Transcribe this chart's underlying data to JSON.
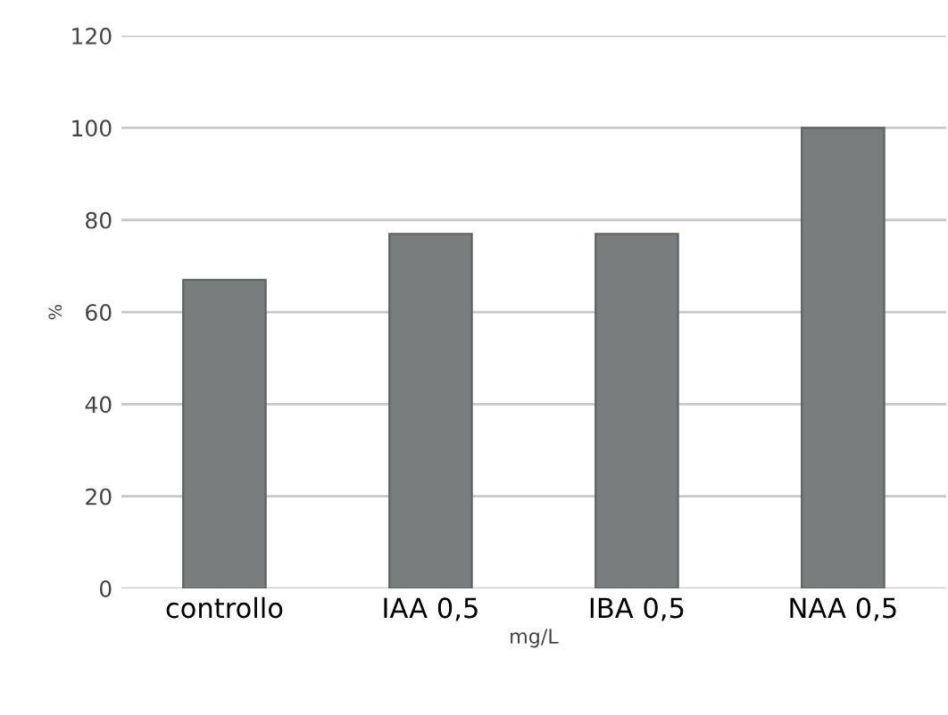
{
  "chart_data": {
    "type": "bar",
    "xlabel": "mg/L",
    "ylabel": "%",
    "categories": [
      "controllo",
      "IAA 0,5",
      "IBA 0,5",
      "NAA 0,5"
    ],
    "values": [
      67,
      77,
      77,
      100
    ],
    "color": "#7a7d7d",
    "ylim": [
      0,
      120
    ],
    "yticks": [
      0,
      20,
      40,
      60,
      80,
      100,
      120
    ],
    "grid": "y"
  }
}
